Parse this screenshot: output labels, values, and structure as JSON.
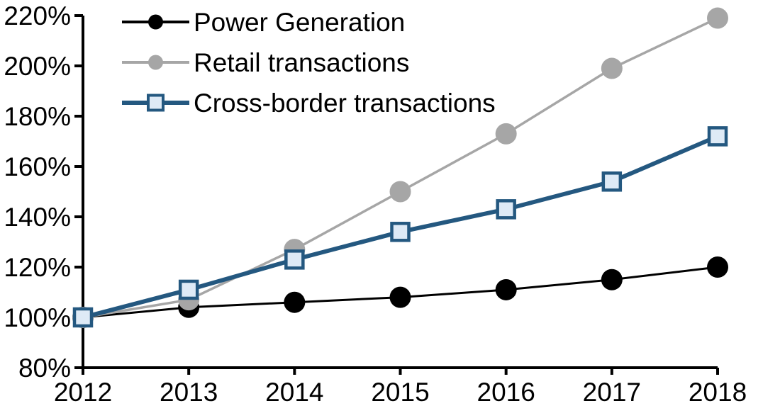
{
  "chart_data": {
    "type": "line",
    "x": [
      2012,
      2013,
      2014,
      2015,
      2016,
      2017,
      2018
    ],
    "xtick_labels": [
      "2012",
      "2013",
      "2014",
      "2015",
      "2016",
      "2017",
      "2018"
    ],
    "series": [
      {
        "name": "Power Generation",
        "values": [
          100,
          104,
          106,
          108,
          111,
          115,
          120
        ],
        "color": "#000000",
        "marker": "circle",
        "marker_fill": "#000000",
        "line_width": 3
      },
      {
        "name": "Retail transactions",
        "values": [
          100,
          107,
          127,
          150,
          173,
          199,
          219
        ],
        "color": "#A6A6A6",
        "marker": "circle",
        "marker_fill": "#A6A6A6",
        "line_width": 3.5
      },
      {
        "name": "Cross-border transactions",
        "values": [
          100,
          111,
          123,
          134,
          143,
          154,
          172
        ],
        "color": "#245880",
        "marker": "square",
        "marker_fill": "#DEEAF6",
        "line_width": 6
      }
    ],
    "title": "",
    "xlabel": "",
    "ylabel": "",
    "ylim": [
      80,
      220
    ],
    "ytick_step": 20,
    "ytick_labels": [
      "80%",
      "100%",
      "120%",
      "140%",
      "160%",
      "180%",
      "200%",
      "220%"
    ],
    "grid": false,
    "legend_position": "top-left",
    "axis_color": "#000000",
    "background_color": "#ffffff"
  }
}
